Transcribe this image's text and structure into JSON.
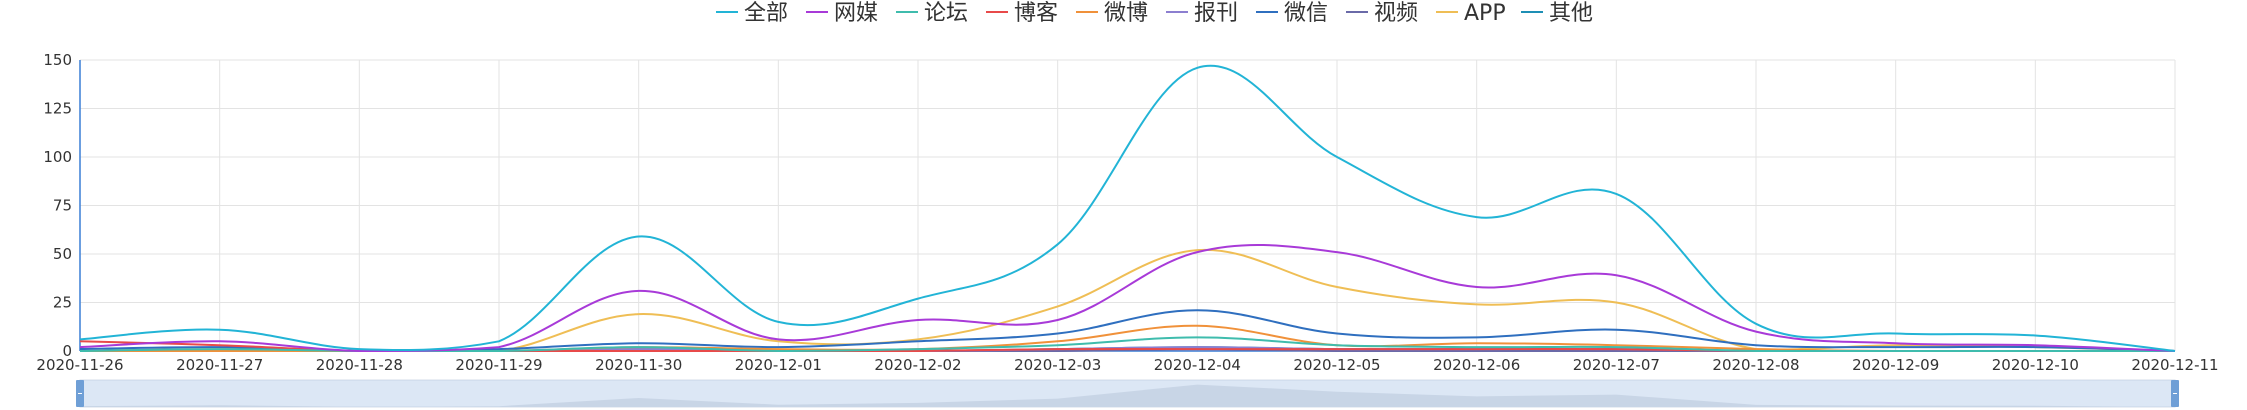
{
  "chart_data": {
    "type": "line",
    "x": [
      "2020-11-26",
      "2020-11-27",
      "2020-11-28",
      "2020-11-29",
      "2020-11-30",
      "2020-12-01",
      "2020-12-02",
      "2020-12-03",
      "2020-12-04",
      "2020-12-05",
      "2020-12-06",
      "2020-12-07",
      "2020-12-08",
      "2020-12-09",
      "2020-12-10",
      "2020-12-11"
    ],
    "ylim": [
      0,
      150
    ],
    "yticks": [
      0,
      25,
      50,
      75,
      100,
      125,
      150
    ],
    "grid": true,
    "legend_position": "top-center",
    "data_zoom_slider": true,
    "series": [
      {
        "name": "全部",
        "color": "#22b4d6",
        "values": [
          6,
          11,
          1,
          5,
          59,
          15,
          27,
          55,
          146,
          100,
          69,
          81,
          14,
          9,
          8,
          0
        ]
      },
      {
        "name": "网媒",
        "color": "#a83ad8",
        "values": [
          2,
          5,
          0,
          2,
          31,
          6,
          16,
          16,
          51,
          51,
          33,
          39,
          10,
          4,
          3,
          0
        ]
      },
      {
        "name": "论坛",
        "color": "#3fbcad",
        "values": [
          0,
          1,
          0,
          0,
          2,
          0,
          1,
          3,
          7,
          3,
          2,
          2,
          0,
          0,
          0,
          0
        ]
      },
      {
        "name": "博客",
        "color": "#e84a4a",
        "values": [
          5,
          3,
          0,
          0,
          0,
          0,
          0,
          1,
          1,
          1,
          1,
          1,
          0,
          0,
          0,
          0
        ]
      },
      {
        "name": "微博",
        "color": "#f0913a",
        "values": [
          0,
          0,
          0,
          0,
          2,
          1,
          1,
          5,
          13,
          3,
          4,
          3,
          1,
          0,
          0,
          0
        ]
      },
      {
        "name": "报刊",
        "color": "#8c7fd0",
        "values": [
          0,
          0,
          0,
          0,
          1,
          0,
          0,
          1,
          2,
          1,
          1,
          1,
          0,
          0,
          0,
          0
        ]
      },
      {
        "name": "微信",
        "color": "#2f6fbf",
        "values": [
          1,
          2,
          0,
          1,
          4,
          2,
          5,
          9,
          21,
          9,
          7,
          11,
          3,
          2,
          2,
          0
        ]
      },
      {
        "name": "视频",
        "color": "#6a6aa8",
        "values": [
          0,
          0,
          0,
          0,
          1,
          0,
          0,
          0,
          1,
          0,
          0,
          0,
          0,
          0,
          0,
          0
        ]
      },
      {
        "name": "APP",
        "color": "#efbe55",
        "values": [
          0,
          1,
          0,
          0,
          19,
          5,
          6,
          23,
          52,
          33,
          24,
          25,
          1,
          3,
          2,
          0
        ]
      },
      {
        "name": "其他",
        "color": "#1e8fb5",
        "values": [
          0,
          0,
          0,
          0,
          1,
          0,
          0,
          1,
          2,
          1,
          1,
          1,
          0,
          0,
          0,
          0
        ]
      }
    ]
  }
}
